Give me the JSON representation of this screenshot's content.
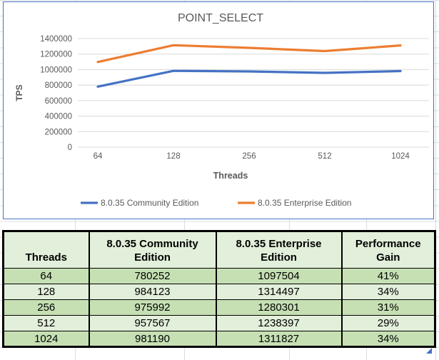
{
  "sheet": {
    "gridline_color": "#d9dde3",
    "chart_border_color": "#4472C4",
    "fill_handle_color": "#4472C4"
  },
  "chart_data": {
    "type": "line",
    "title": "POINT_SELECT",
    "xlabel": "Threads",
    "ylabel": "TPS",
    "categories": [
      "64",
      "128",
      "256",
      "512",
      "1024"
    ],
    "series": [
      {
        "name": "8.0.35 Community Edition",
        "color": "#4472C4",
        "values": [
          780252,
          984123,
          975992,
          957567,
          981190
        ]
      },
      {
        "name": "8.0.35 Enterprise Edition",
        "color": "#ED7D31",
        "values": [
          1097504,
          1314497,
          1280301,
          1238397,
          1311827
        ]
      }
    ],
    "ylim": [
      0,
      1400000
    ],
    "ytick_step": 200000,
    "grid": true,
    "legend_position": "bottom",
    "text_color": "#595959",
    "gridline_color": "#D9D9D9"
  },
  "table": {
    "columns": [
      "Threads",
      "8.0.35 Community Edition",
      "8.0.35 Enterprise Edition",
      "Performance Gain"
    ],
    "rows": [
      [
        "64",
        "780252",
        "1097504",
        "41%"
      ],
      [
        "128",
        "984123",
        "1314497",
        "34%"
      ],
      [
        "256",
        "975992",
        "1280301",
        "31%"
      ],
      [
        "512",
        "957567",
        "1238397",
        "29%"
      ],
      [
        "1024",
        "981190",
        "1311827",
        "34%"
      ]
    ],
    "header_bg": "#E2EFDA",
    "row_bg_dark": "#C6E0B4",
    "row_bg_light": "#E2EFDA"
  }
}
